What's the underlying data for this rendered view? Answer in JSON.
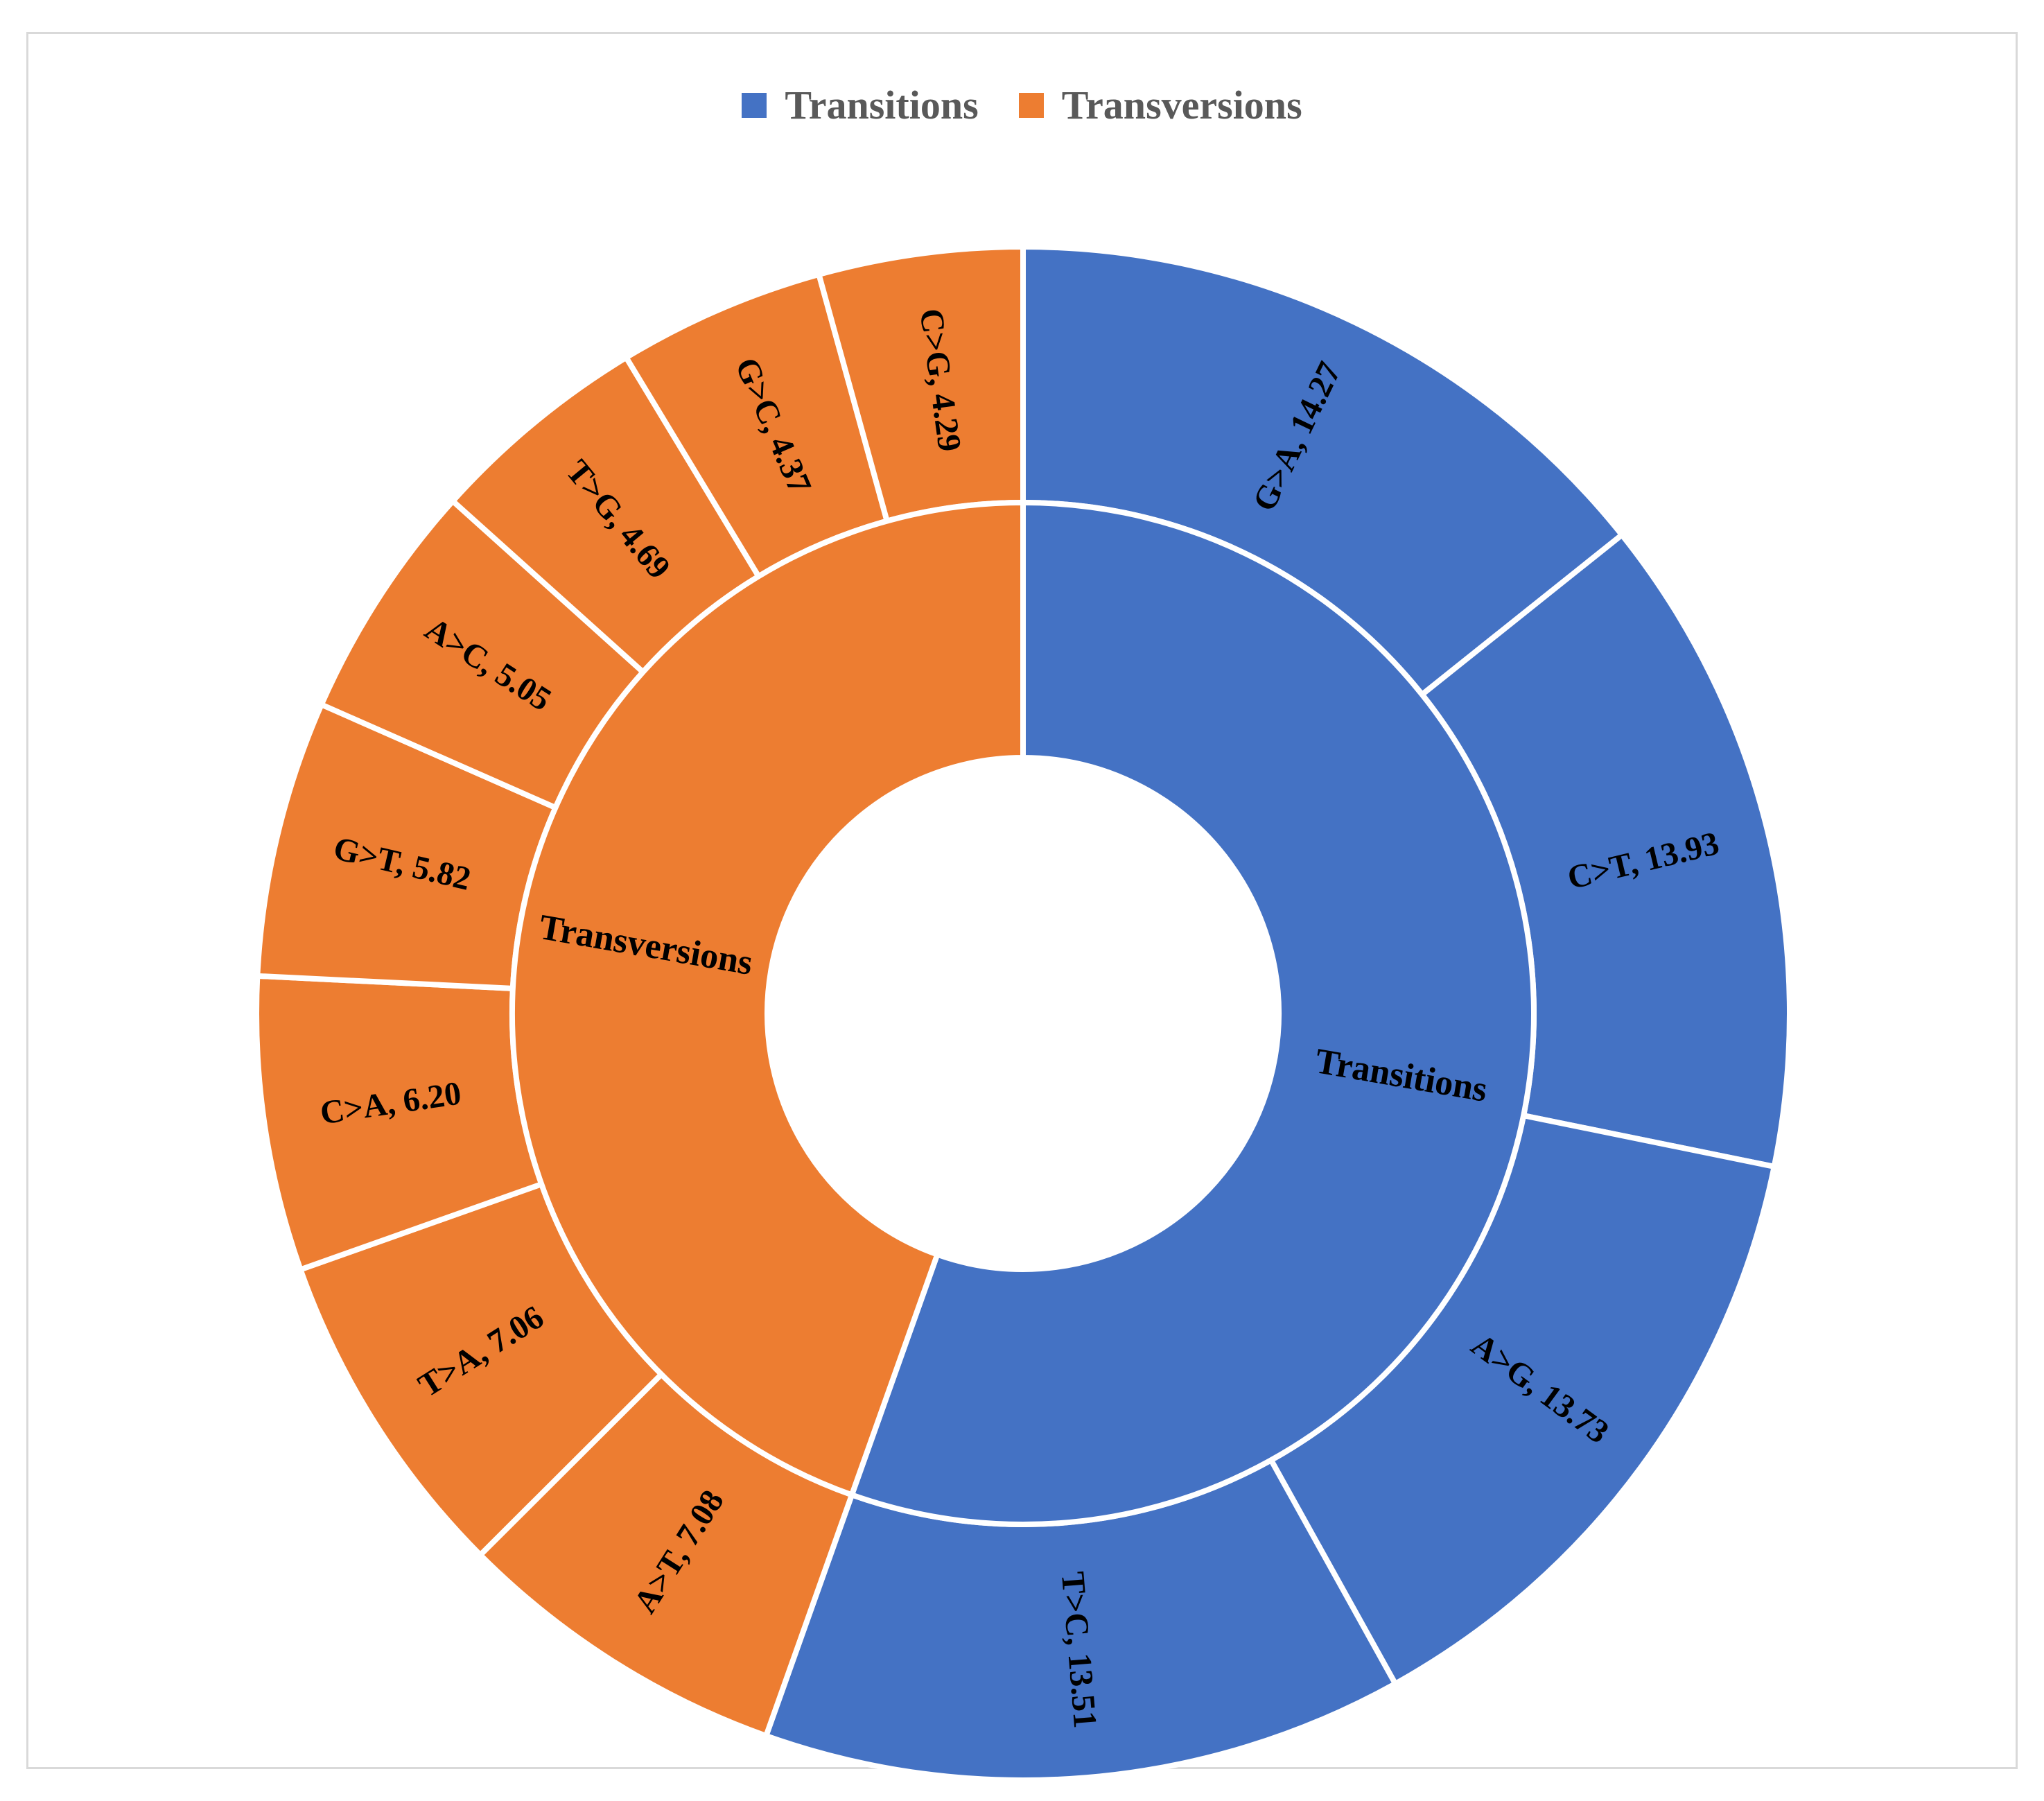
{
  "legend": {
    "items": [
      {
        "name": "Transitions",
        "color": "#4472C4"
      },
      {
        "name": "Transversions",
        "color": "#ED7D31"
      }
    ]
  },
  "chart_data": {
    "type": "sunburst",
    "groups": [
      {
        "name": "Transitions",
        "color": "#4472C4",
        "children": [
          {
            "label": "G>A, 14.27",
            "category": "G>A",
            "value": 14.27
          },
          {
            "label": "C>T, 13.93",
            "category": "C>T",
            "value": 13.93
          },
          {
            "label": "A>G, 13.73",
            "category": "A>G",
            "value": 13.73
          },
          {
            "label": "T>C, 13.51",
            "category": "T>C",
            "value": 13.51
          }
        ]
      },
      {
        "name": "Transversions",
        "color": "#ED7D31",
        "children": [
          {
            "label": "A>T, 7.08",
            "category": "A>T",
            "value": 7.08
          },
          {
            "label": "T>A, 7.06",
            "category": "T>A",
            "value": 7.06
          },
          {
            "label": "C>A, 6.20",
            "category": "C>A",
            "value": 6.2
          },
          {
            "label": "G>T, 5.82",
            "category": "G>T",
            "value": 5.82
          },
          {
            "label": "A>C, 5.05",
            "category": "A>C",
            "value": 5.05
          },
          {
            "label": "T>G, 4.69",
            "category": "T>G",
            "value": 4.69
          },
          {
            "label": "G>C, 4.37",
            "category": "G>C",
            "value": 4.37
          },
          {
            "label": "C>G, 4.29",
            "category": "C>G",
            "value": 4.29
          }
        ]
      }
    ],
    "legend_position": "top",
    "start_angle": "12 o'clock, clockwise"
  }
}
